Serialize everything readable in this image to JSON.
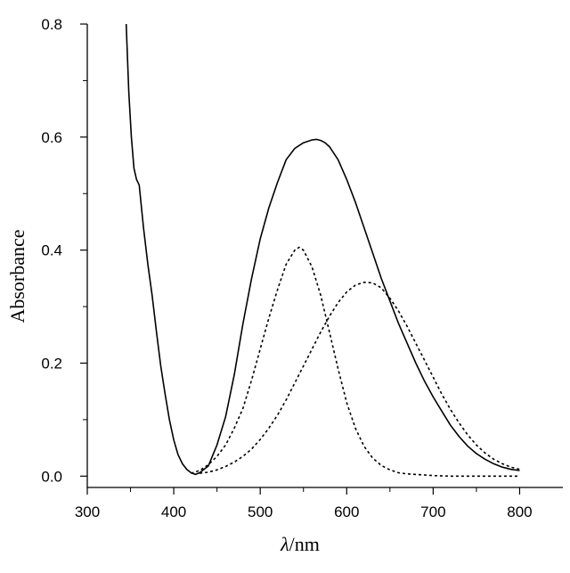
{
  "chart_data": {
    "type": "line",
    "xlabel_prefix": "λ",
    "xlabel_suffix": "/nm",
    "ylabel": "Absorbance",
    "xlim": [
      300,
      850
    ],
    "ylim": [
      -0.02,
      0.8
    ],
    "x_ticks": [
      300,
      400,
      500,
      600,
      700,
      800
    ],
    "y_ticks": [
      0.0,
      0.2,
      0.4,
      0.6,
      0.8
    ],
    "y_tick_labels": [
      "0.0",
      "0.2",
      "0.4",
      "0.6",
      "0.8"
    ],
    "grid": false,
    "series": [
      {
        "style": "solid",
        "color": "#000000",
        "x": [
          345,
          348,
          351,
          354,
          357,
          360,
          365,
          370,
          375,
          380,
          385,
          390,
          395,
          400,
          405,
          410,
          415,
          420,
          425,
          430,
          440,
          450,
          460,
          470,
          480,
          490,
          500,
          510,
          520,
          530,
          540,
          550,
          560,
          565,
          570,
          575,
          580,
          590,
          600,
          610,
          620,
          630,
          640,
          650,
          660,
          670,
          680,
          690,
          700,
          710,
          720,
          730,
          740,
          750,
          760,
          770,
          780,
          790,
          800
        ],
        "y": [
          0.8,
          0.68,
          0.6,
          0.545,
          0.525,
          0.515,
          0.44,
          0.375,
          0.32,
          0.255,
          0.195,
          0.145,
          0.1,
          0.064,
          0.038,
          0.022,
          0.012,
          0.006,
          0.003,
          0.006,
          0.018,
          0.055,
          0.105,
          0.18,
          0.27,
          0.35,
          0.42,
          0.475,
          0.52,
          0.56,
          0.58,
          0.59,
          0.595,
          0.596,
          0.594,
          0.59,
          0.583,
          0.56,
          0.525,
          0.485,
          0.44,
          0.395,
          0.35,
          0.31,
          0.27,
          0.235,
          0.2,
          0.168,
          0.14,
          0.115,
          0.09,
          0.07,
          0.053,
          0.04,
          0.03,
          0.022,
          0.016,
          0.012,
          0.01
        ]
      },
      {
        "style": "dotted",
        "color": "#000000",
        "x": [
          420,
          430,
          440,
          450,
          460,
          470,
          480,
          490,
          500,
          510,
          520,
          530,
          540,
          545,
          550,
          560,
          570,
          580,
          590,
          600,
          610,
          620,
          630,
          640,
          650,
          660,
          670,
          680,
          690,
          700,
          720,
          740,
          760,
          780,
          800
        ],
        "y": [
          0.005,
          0.01,
          0.02,
          0.035,
          0.055,
          0.085,
          0.12,
          0.17,
          0.225,
          0.28,
          0.33,
          0.375,
          0.4,
          0.405,
          0.4,
          0.37,
          0.32,
          0.255,
          0.19,
          0.13,
          0.085,
          0.053,
          0.032,
          0.019,
          0.011,
          0.006,
          0.004,
          0.003,
          0.002,
          0.001,
          0.0,
          0.0,
          0.0,
          0.0,
          0.0
        ]
      },
      {
        "style": "dotted",
        "color": "#000000",
        "x": [
          430,
          440,
          450,
          460,
          470,
          480,
          490,
          500,
          510,
          520,
          530,
          540,
          550,
          560,
          570,
          580,
          590,
          600,
          610,
          620,
          630,
          640,
          650,
          660,
          670,
          680,
          690,
          700,
          710,
          720,
          730,
          740,
          750,
          760,
          770,
          780,
          790,
          800
        ],
        "y": [
          0.005,
          0.007,
          0.011,
          0.017,
          0.025,
          0.035,
          0.048,
          0.065,
          0.085,
          0.108,
          0.135,
          0.165,
          0.195,
          0.225,
          0.255,
          0.283,
          0.307,
          0.326,
          0.338,
          0.343,
          0.342,
          0.333,
          0.315,
          0.292,
          0.265,
          0.235,
          0.205,
          0.175,
          0.145,
          0.118,
          0.094,
          0.073,
          0.055,
          0.041,
          0.03,
          0.022,
          0.016,
          0.012
        ]
      }
    ]
  }
}
